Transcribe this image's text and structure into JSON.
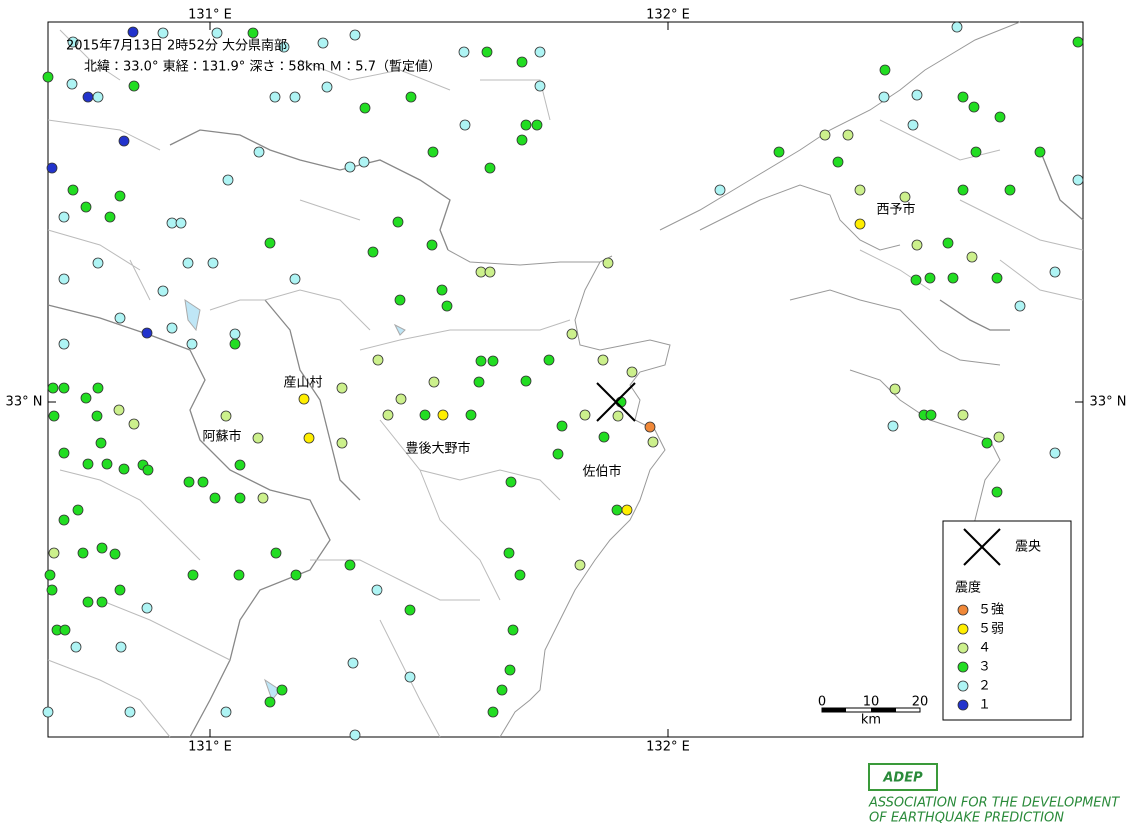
{
  "header": {
    "title": "2015年7月13日 2時52分 大分県南部",
    "details": "北緯：33.0° 東経：131.9° 深さ：58km Ｍ：5.7（暫定値）"
  },
  "graticule": {
    "lon_labels": [
      "131° E",
      "132° E"
    ],
    "lat_label": "33° N"
  },
  "places": [
    "産山村",
    "阿蘇市",
    "豊後大野市",
    "佐伯市",
    "西予市"
  ],
  "legend": {
    "epicenter": "震央",
    "title": "震度",
    "levels": [
      {
        "label": "５強",
        "color": "#f08838"
      },
      {
        "label": "５弱",
        "color": "#ffee00"
      },
      {
        "label": "４",
        "color": "#ccf08c"
      },
      {
        "label": "３",
        "color": "#22dd22"
      },
      {
        "label": "２",
        "color": "#aef4f4"
      },
      {
        "label": "１",
        "color": "#2233cc"
      }
    ]
  },
  "scale": {
    "ticks": [
      "0",
      "10",
      "20"
    ],
    "unit": "km"
  },
  "logo": {
    "mark": "ADEP",
    "line1": "ASSOCIATION FOR THE DEVELOPMENT",
    "line2": "OF EARTHQUAKE PREDICTION"
  }
}
